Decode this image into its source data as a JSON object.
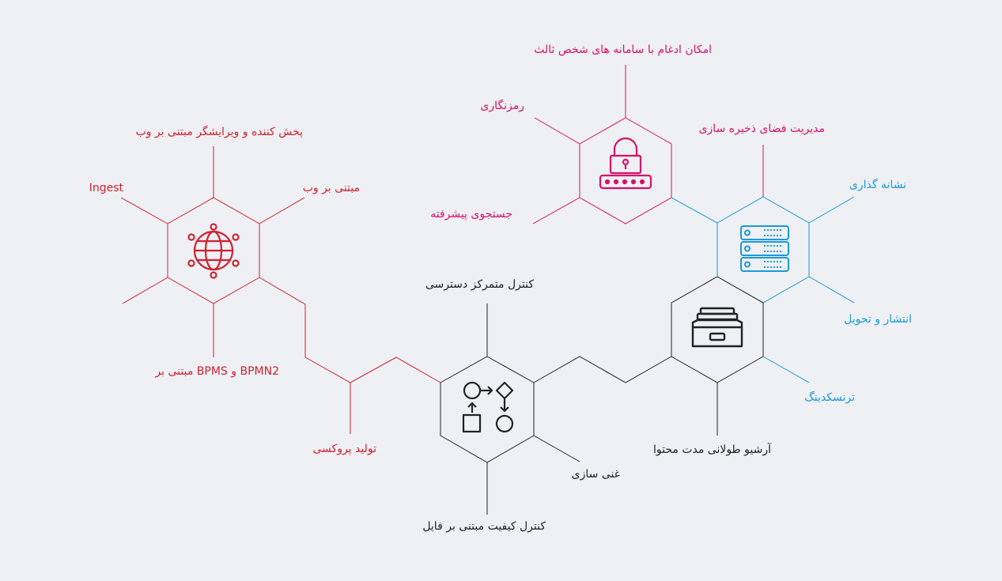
{
  "colors": {
    "background": "#eef0f4",
    "red": "#d0202f",
    "pink": "#d8106a",
    "blue": "#1a9ad6",
    "dark": "#222222"
  },
  "nodes": {
    "web": {
      "icon": "globe-network-icon",
      "color": "red"
    },
    "security": {
      "icon": "lock-icon",
      "color": "pink"
    },
    "storage": {
      "icon": "server-icon",
      "color": "blue"
    },
    "archive": {
      "icon": "archive-tray-icon",
      "color": "dark"
    },
    "workflow": {
      "icon": "workflow-process-icon",
      "color": "dark"
    }
  },
  "labels": {
    "web_player": "پخش کننده و ویرایشگر مبتنی بر وب",
    "ingest": "Ingest",
    "web_based": "مبتنی بر وب",
    "bpmn": "BPMN2 و BPMS مبتنی بر",
    "proxy": "تولید پروکسی",
    "integration": "امکان ادغام با سامانه های شخص ثالث",
    "encryption": "رمزنگاری",
    "storage_mgmt": "مدیریت فضای ذخیره سازی",
    "advanced_search": "جستجوی پیشرفته",
    "tagging": "نشانه گذاری",
    "publish": "انتشار و تحویل",
    "transcoding": "ترنسکدینگ",
    "long_archive": "آرشیو طولانی مدت محتوا",
    "central_access": "کنترل متمرکز دسترسی",
    "enrichment": "غنی سازی",
    "file_qc": "کنترل کیفیت مبتنی بر فایل"
  }
}
